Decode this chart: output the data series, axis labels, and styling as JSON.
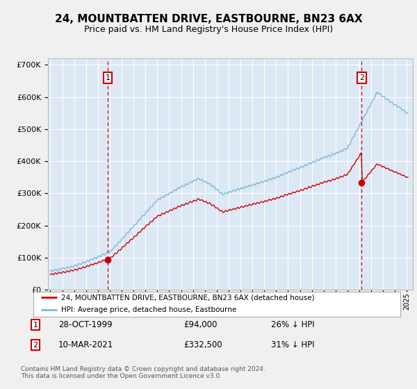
{
  "title": "24, MOUNTBATTEN DRIVE, EASTBOURNE, BN23 6AX",
  "subtitle": "Price paid vs. HM Land Registry's House Price Index (HPI)",
  "title_fontsize": 11,
  "subtitle_fontsize": 9,
  "bg_color": "#dde8f5",
  "fig_bg_color": "#f0f0f0",
  "grid_color": "#ffffff",
  "sale1_date_num": 1999.82,
  "sale1_price": 94000,
  "sale1_label": "1",
  "sale2_date_num": 2021.19,
  "sale2_price": 332500,
  "sale2_label": "2",
  "legend_line1": "24, MOUNTBATTEN DRIVE, EASTBOURNE, BN23 6AX (detached house)",
  "legend_line2": "HPI: Average price, detached house, Eastbourne",
  "annot1_date": "28-OCT-1999",
  "annot1_price": "£94,000",
  "annot1_hpi": "26% ↓ HPI",
  "annot2_date": "10-MAR-2021",
  "annot2_price": "£332,500",
  "annot2_hpi": "31% ↓ HPI",
  "footnote": "Contains HM Land Registry data © Crown copyright and database right 2024.\nThis data is licensed under the Open Government Licence v3.0.",
  "hpi_color": "#7ab8d9",
  "sale_color": "#cc0000",
  "vline_color": "#cc0000",
  "ylim_max": 720000,
  "xlim_min": 1994.8,
  "xlim_max": 2025.5
}
